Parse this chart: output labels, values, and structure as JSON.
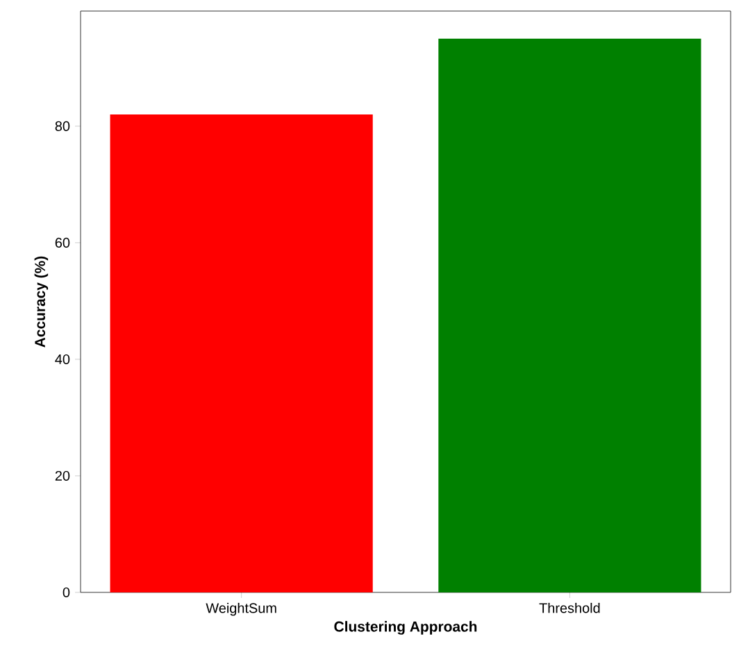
{
  "chart_data": {
    "type": "bar",
    "xlabel": "Clustering Approach",
    "ylabel": "Accuracy (%)",
    "categories": [
      "WeightSum",
      "Threshold"
    ],
    "values": [
      82,
      95
    ],
    "colors": [
      "#ff0000",
      "#008000"
    ],
    "ylim": [
      0,
      99.75
    ],
    "yticks": [
      0,
      20,
      40,
      60,
      80
    ]
  }
}
